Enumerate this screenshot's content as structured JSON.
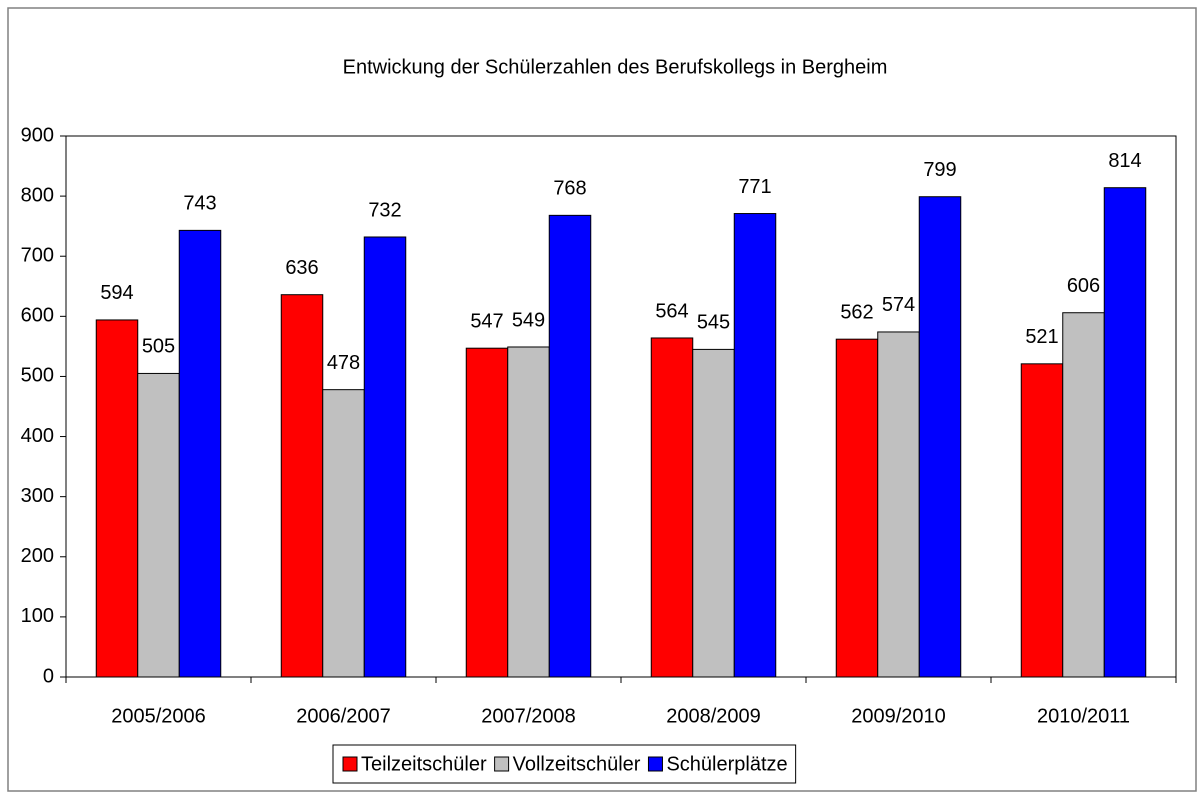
{
  "chart_data": {
    "type": "bar",
    "title": "Entwickung der Schülerzahlen des Berufskollegs in Bergheim",
    "categories": [
      "2005/2006",
      "2006/2007",
      "2007/2008",
      "2008/2009",
      "2009/2010",
      "2010/2011"
    ],
    "series": [
      {
        "name": "Teilzeitschüler",
        "color": "#ff0000",
        "values": [
          594,
          636,
          547,
          564,
          562,
          521
        ]
      },
      {
        "name": "Vollzeitschüler",
        "color": "#c0c0c0",
        "values": [
          505,
          478,
          549,
          545,
          574,
          606
        ]
      },
      {
        "name": "Schülerplätze",
        "color": "#0000ff",
        "values": [
          743,
          732,
          768,
          771,
          799,
          814
        ]
      }
    ],
    "ylim": [
      0,
      900
    ],
    "yticks": [
      0,
      100,
      200,
      300,
      400,
      500,
      600,
      700,
      800,
      900
    ],
    "grid": false,
    "legend": "bottom"
  }
}
